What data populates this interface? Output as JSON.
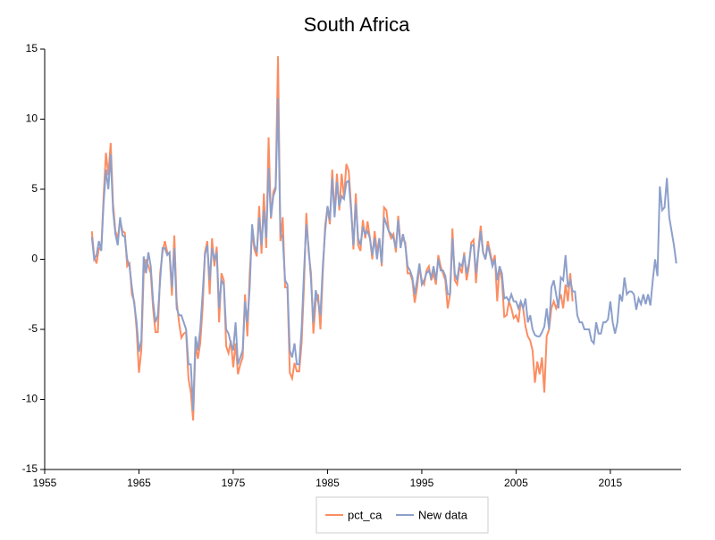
{
  "chart_data": {
    "type": "line",
    "title": "South Africa",
    "x": [
      1960,
      1960.25,
      1960.5,
      1960.75,
      1961,
      1961.25,
      1961.5,
      1961.75,
      1962,
      1962.25,
      1962.5,
      1962.75,
      1963,
      1963.25,
      1963.5,
      1963.75,
      1964,
      1964.25,
      1964.5,
      1964.75,
      1965,
      1965.25,
      1965.5,
      1965.75,
      1966,
      1966.25,
      1966.5,
      1966.75,
      1967,
      1967.25,
      1967.5,
      1967.75,
      1968,
      1968.25,
      1968.5,
      1968.75,
      1969,
      1969.25,
      1969.5,
      1969.75,
      1970,
      1970.25,
      1970.5,
      1970.75,
      1971,
      1971.25,
      1971.5,
      1971.75,
      1972,
      1972.25,
      1972.5,
      1972.75,
      1973,
      1973.25,
      1973.5,
      1973.75,
      1974,
      1974.25,
      1974.5,
      1974.75,
      1975,
      1975.25,
      1975.5,
      1975.75,
      1976,
      1976.25,
      1976.5,
      1976.75,
      1977,
      1977.25,
      1977.5,
      1977.75,
      1978,
      1978.25,
      1978.5,
      1978.75,
      1979,
      1979.25,
      1979.5,
      1979.75,
      1980,
      1980.25,
      1980.5,
      1980.75,
      1981,
      1981.25,
      1981.5,
      1981.75,
      1982,
      1982.25,
      1982.5,
      1982.75,
      1983,
      1983.25,
      1983.5,
      1983.75,
      1984,
      1984.25,
      1984.5,
      1984.75,
      1985,
      1985.25,
      1985.5,
      1985.75,
      1986,
      1986.25,
      1986.5,
      1986.75,
      1987,
      1987.25,
      1987.5,
      1987.75,
      1988,
      1988.25,
      1988.5,
      1988.75,
      1989,
      1989.25,
      1989.5,
      1989.75,
      1990,
      1990.25,
      1990.5,
      1990.75,
      1991,
      1991.25,
      1991.5,
      1991.75,
      1992,
      1992.25,
      1992.5,
      1992.75,
      1993,
      1993.25,
      1993.5,
      1993.75,
      1994,
      1994.25,
      1994.5,
      1994.75,
      1995,
      1995.25,
      1995.5,
      1995.75,
      1996,
      1996.25,
      1996.5,
      1996.75,
      1997,
      1997.25,
      1997.5,
      1997.75,
      1998,
      1998.25,
      1998.5,
      1998.75,
      1999,
      1999.25,
      1999.5,
      1999.75,
      2000,
      2000.25,
      2000.5,
      2000.75,
      2001,
      2001.25,
      2001.5,
      2001.75,
      2002,
      2002.25,
      2002.5,
      2002.75,
      2003,
      2003.25,
      2003.5,
      2003.75,
      2004,
      2004.25,
      2004.5,
      2004.75,
      2005,
      2005.25,
      2005.5,
      2005.75,
      2006,
      2006.25,
      2006.5,
      2006.75,
      2007,
      2007.25,
      2007.5,
      2007.75,
      2008,
      2008.25,
      2008.5,
      2008.75,
      2009,
      2009.25,
      2009.5,
      2009.75,
      2010,
      2010.25,
      2010.5,
      2010.75,
      2011,
      2011.25,
      2011.5,
      2011.75,
      2012,
      2012.25,
      2012.5,
      2012.75,
      2013,
      2013.25,
      2013.5,
      2013.75,
      2014,
      2014.25,
      2014.5,
      2014.75,
      2015,
      2015.25,
      2015.5,
      2015.75,
      2016,
      2016.25,
      2016.5,
      2016.75,
      2017,
      2017.25,
      2017.5,
      2017.75,
      2018,
      2018.25,
      2018.5,
      2018.75,
      2019,
      2019.25,
      2019.5,
      2019.75,
      2020,
      2020.25,
      2020.5,
      2020.75,
      2021,
      2021.25,
      2021.5,
      2021.75,
      2022
    ],
    "series": [
      {
        "name": "pct_ca",
        "color": "#fc8d62",
        "values": [
          2.0,
          0.2,
          -0.3,
          0.8,
          0.7,
          4.5,
          7.6,
          6.0,
          8.3,
          4.0,
          2.0,
          1.5,
          2.8,
          2.0,
          1.9,
          -0.5,
          -0.3,
          -2.5,
          -3.0,
          -5.0,
          -8.1,
          -6.5,
          -1.0,
          0.0,
          -0.5,
          -1.0,
          -3.5,
          -5.2,
          -5.2,
          -1.0,
          0.5,
          1.3,
          0.5,
          0.3,
          -2.6,
          1.7,
          -3.0,
          -4.5,
          -5.6,
          -5.3,
          -5.2,
          -8.5,
          -9.5,
          -11.5,
          -6.0,
          -7.1,
          -6.0,
          -3.5,
          0.5,
          1.3,
          -2.5,
          1.5,
          -0.5,
          0.9,
          -4.5,
          -1.0,
          -1.5,
          -6.2,
          -6.7,
          -5.8,
          -7.7,
          -6.0,
          -8.2,
          -7.5,
          -7.0,
          -2.5,
          -5.5,
          -1.0,
          2.0,
          0.7,
          0.2,
          3.8,
          0.4,
          4.7,
          0.8,
          8.7,
          2.9,
          4.8,
          5.2,
          14.5,
          1.3,
          3.0,
          -2.0,
          -2.0,
          -8.1,
          -8.5,
          -7.4,
          -8.0,
          -8.0,
          -6.0,
          -2.0,
          3.3,
          0.5,
          -1.0,
          -5.3,
          -3.0,
          -2.5,
          -5.0,
          -1.0,
          2.4,
          3.7,
          2.5,
          6.4,
          3.2,
          6.1,
          3.5,
          6.1,
          4.4,
          6.8,
          6.3,
          3.8,
          0.7,
          4.7,
          1.0,
          0.6,
          2.8,
          1.5,
          2.7,
          1.5,
          0.0,
          2.0,
          0.5,
          1.5,
          -0.5,
          3.7,
          3.5,
          2.0,
          1.5,
          1.8,
          0.5,
          3.1,
          1.0,
          1.5,
          1.2,
          -1.0,
          -1.0,
          -1.5,
          -3.1,
          -2.0,
          -0.5,
          -1.5,
          -1.8,
          -0.8,
          -0.5,
          -1.5,
          -1.0,
          -1.8,
          0.3,
          -0.5,
          -1.0,
          -1.5,
          -3.5,
          -2.5,
          2.2,
          -1.5,
          -1.8,
          -0.5,
          -1.0,
          0.5,
          -1.5,
          -0.5,
          1.2,
          1.4,
          -1.7,
          0.6,
          2.4,
          0.5,
          0.0,
          1.3,
          0.5,
          -0.3,
          0.3,
          -3.0,
          -0.5,
          -1.5,
          -4.1,
          -4.0,
          -3.0,
          -3.5,
          -4.2,
          -4.0,
          -4.5,
          -3.0,
          -3.5,
          -4.8,
          -5.5,
          -5.8,
          -6.5,
          -8.8,
          -7.3,
          -8.2,
          -7.0,
          -9.5,
          -5.5,
          -5.0,
          -3.5,
          -3.0,
          -3.5,
          -3.0,
          -2.5,
          -3.5,
          -1.8,
          -3.0,
          -1.0,
          -3.0,
          null,
          null,
          null,
          null,
          null,
          null,
          null,
          null,
          null,
          null,
          null,
          null,
          null,
          null,
          null,
          null,
          null,
          null,
          null,
          null,
          null,
          null,
          null,
          null,
          null,
          null,
          null,
          null,
          null,
          null,
          null,
          null,
          null,
          null,
          null,
          null,
          null,
          null,
          null,
          null,
          null,
          null,
          null,
          null
        ]
      },
      {
        "name": "New data",
        "color": "#8da0cb",
        "values": [
          1.6,
          0.0,
          0.3,
          1.3,
          0.6,
          4.0,
          6.4,
          5.0,
          7.5,
          3.5,
          1.8,
          1.0,
          3.0,
          1.7,
          1.6,
          0.0,
          -0.5,
          -2.0,
          -3.2,
          -4.5,
          -6.6,
          -5.8,
          0.2,
          -1.0,
          0.5,
          -0.5,
          -3.0,
          -4.5,
          -4.0,
          -1.5,
          0.8,
          0.8,
          0.3,
          0.5,
          -2.0,
          0.8,
          -3.5,
          -4.0,
          -4.0,
          -4.5,
          -5.0,
          -7.5,
          -7.5,
          -10.8,
          -5.5,
          -6.5,
          -5.0,
          -2.5,
          0.3,
          1.0,
          -1.5,
          0.8,
          0.0,
          0.5,
          -3.5,
          -1.5,
          -1.8,
          -5.0,
          -5.3,
          -6.0,
          -6.5,
          -4.5,
          -7.5,
          -7.0,
          -6.5,
          -3.0,
          -4.5,
          -2.0,
          2.5,
          1.0,
          0.5,
          3.0,
          1.0,
          3.5,
          1.5,
          6.5,
          3.0,
          4.5,
          5.0,
          11.5,
          2.0,
          1.5,
          -1.5,
          -1.8,
          -6.5,
          -7.0,
          -6.0,
          -7.5,
          -7.5,
          -5.0,
          -1.0,
          2.5,
          0.8,
          -1.5,
          -4.5,
          -2.2,
          -3.0,
          -4.0,
          -0.5,
          2.0,
          3.8,
          2.8,
          5.8,
          3.0,
          5.5,
          3.8,
          4.5,
          4.3,
          5.5,
          5.6,
          3.5,
          1.0,
          4.0,
          1.5,
          1.0,
          2.3,
          1.8,
          2.0,
          1.5,
          0.3,
          1.5,
          0.0,
          1.5,
          -0.3,
          3.0,
          2.5,
          2.0,
          1.8,
          1.5,
          0.8,
          2.8,
          0.8,
          1.8,
          1.0,
          -0.5,
          -0.8,
          -1.3,
          -2.5,
          -1.5,
          -0.3,
          -1.8,
          -1.5,
          -1.0,
          -0.8,
          -1.3,
          -0.5,
          -1.5,
          0.0,
          -0.8,
          -0.8,
          -1.2,
          -2.5,
          -2.5,
          1.5,
          -1.0,
          -1.5,
          -0.3,
          -0.5,
          0.3,
          -1.0,
          -0.3,
          1.0,
          1.0,
          -1.0,
          0.5,
          2.0,
          0.5,
          0.0,
          1.0,
          0.3,
          -0.5,
          0.0,
          -1.5,
          -0.5,
          -1.0,
          -2.8,
          -2.7,
          -3.0,
          -2.5,
          -3.0,
          -3.0,
          -3.5,
          -3.0,
          -3.5,
          -2.8,
          -4.5,
          -4.0,
          -5.0,
          -5.4,
          -5.5,
          -5.5,
          -5.2,
          -4.8,
          -3.5,
          -5.0,
          -2.0,
          -1.5,
          -2.5,
          -3.5,
          -1.3,
          -1.5,
          0.3,
          -2.0,
          -1.5,
          -2.3,
          -2.3,
          -4.0,
          -4.5,
          -4.5,
          -5.0,
          -5.0,
          -5.0,
          -5.8,
          -6.0,
          -4.5,
          -5.3,
          -5.3,
          -4.5,
          -4.5,
          -4.3,
          -3.0,
          -4.5,
          -5.3,
          -4.5,
          -2.5,
          -3.0,
          -1.3,
          -2.5,
          -2.3,
          -2.3,
          -2.5,
          -3.6,
          -2.8,
          -3.2,
          -2.5,
          -3.2,
          -2.5,
          -3.3,
          -1.5,
          0.0,
          -1.2,
          5.2,
          3.5,
          3.7,
          5.8,
          3.0,
          2.0,
          1.0,
          -0.3
        ]
      }
    ],
    "xlim": [
      1955,
      2022.5
    ],
    "xticks": [
      1955,
      1965,
      1975,
      1985,
      1995,
      2005,
      2015
    ],
    "ylim": [
      -15,
      15
    ],
    "yticks": [
      -15,
      -10,
      -5,
      0,
      5,
      10,
      15
    ],
    "grid": false,
    "legend": "bottom"
  }
}
